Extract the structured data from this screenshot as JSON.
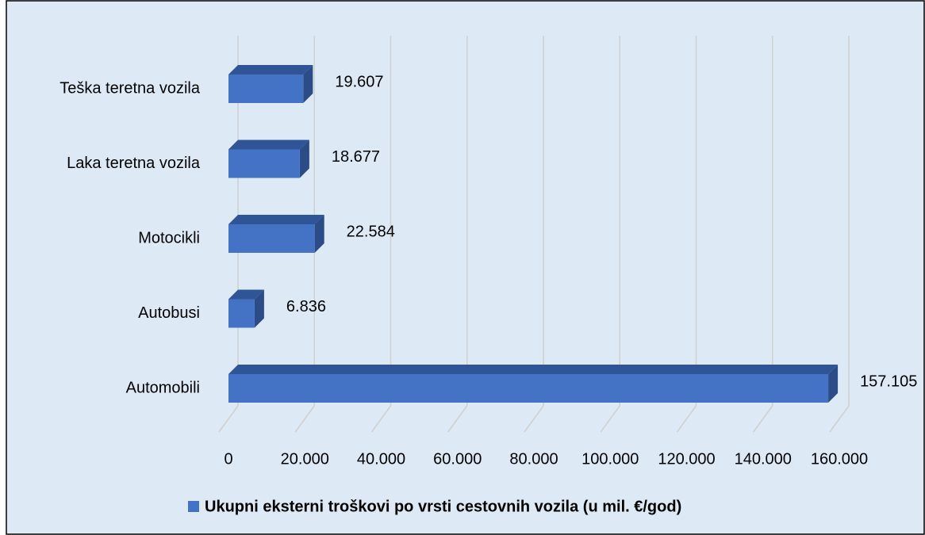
{
  "chart_data": {
    "type": "bar3d_horizontal",
    "categories": [
      "Automobili",
      "Autobusi",
      "Motocikli",
      "Laka teretna vozila",
      "Teška teretna vozila"
    ],
    "series": [
      {
        "name": "Ukupni eksterni troškovi po vrsti cestovnih vozila (u mil. €/god)",
        "color": "#4472c4",
        "values": [
          157105,
          6836,
          22584,
          18677,
          19607
        ],
        "value_labels": [
          "157.105",
          "6.836",
          "22.584",
          "18.677",
          "19.607"
        ]
      }
    ],
    "xlim": [
      0,
      160000
    ],
    "xticks": [
      0,
      {
        "value": 20000,
        "label": "20.000"
      },
      {
        "value": 40000,
        "label": "40.000"
      },
      {
        "value": 60000,
        "label": "60.000"
      },
      {
        "value": 80000,
        "label": "80.000"
      },
      {
        "value": 100000,
        "label": "100.000"
      },
      {
        "value": 120000,
        "label": "120.000"
      },
      {
        "value": 140000,
        "label": "140.000"
      },
      {
        "value": 160000,
        "label": "160.000"
      }
    ],
    "grid": true,
    "legend": "bottom"
  }
}
